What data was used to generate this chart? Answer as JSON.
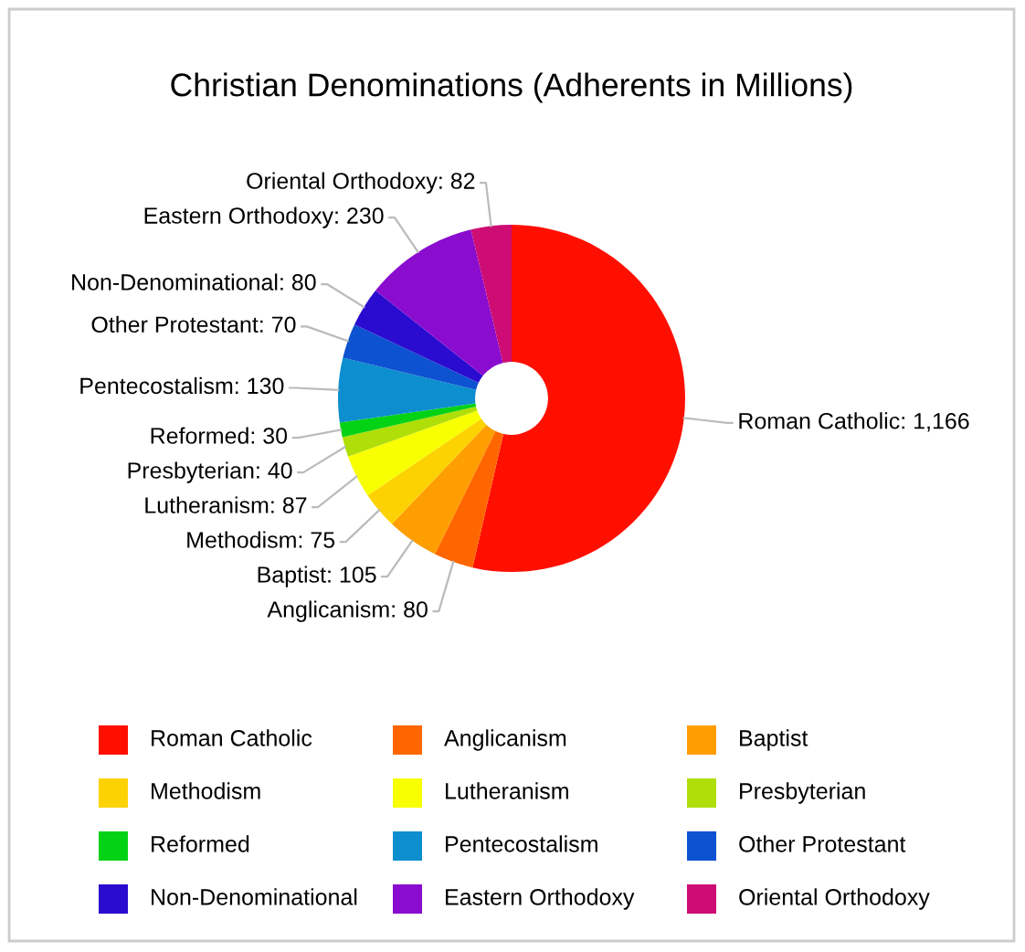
{
  "chart_data": {
    "type": "donut",
    "title": "Christian Denominations (Adherents in Millions)",
    "categories": [
      "Roman Catholic",
      "Anglicanism",
      "Baptist",
      "Methodism",
      "Lutheranism",
      "Presbyterian",
      "Reformed",
      "Pentecostalism",
      "Other Protestant",
      "Non-Denominational",
      "Eastern Orthodoxy",
      "Oriental Orthodoxy"
    ],
    "values": [
      1166,
      80,
      105,
      75,
      87,
      40,
      30,
      130,
      70,
      80,
      230,
      82
    ],
    "value_labels": [
      "Roman Catholic: 1,166",
      "Anglicanism: 80",
      "Baptist: 105",
      "Methodism: 75",
      "Lutheranism: 87",
      "Presbyterian: 40",
      "Reformed: 30",
      "Pentecostalism: 130",
      "Other Protestant: 70",
      "Non-Denominational: 80",
      "Eastern Orthodoxy: 230",
      "Oriental Orthodoxy: 82"
    ],
    "colors": [
      "#ff0f00",
      "#ff6600",
      "#ff9e01",
      "#fcd202",
      "#f8ff01",
      "#b0de09",
      "#04d215",
      "#0d8ecf",
      "#0d52d1",
      "#2a0cd0",
      "#8a0ccf",
      "#cd0d74"
    ],
    "legend": "bottom"
  }
}
